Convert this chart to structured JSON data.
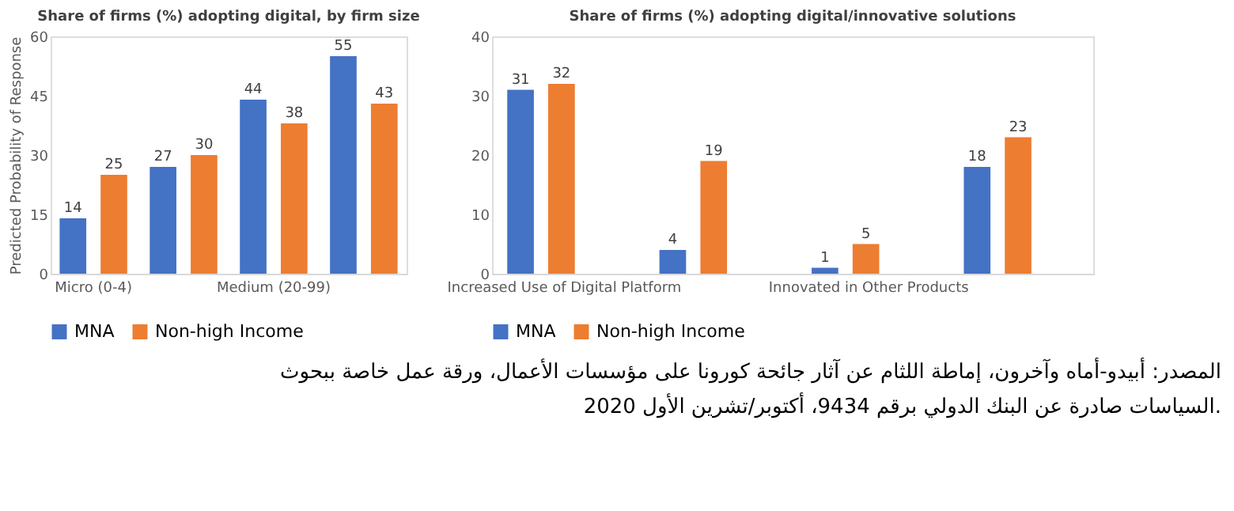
{
  "chart_data": [
    {
      "type": "bar",
      "title": "Share of firms (%) adopting digital, by firm size",
      "ylabel": "Predicted Probability of Response",
      "categories": [
        "Micro (0-4)",
        null,
        "Medium (20-99)",
        null
      ],
      "series": [
        {
          "name": "MNA",
          "color": "#4472c4",
          "values": [
            14,
            27,
            44,
            55
          ]
        },
        {
          "name": "Non-high Income",
          "color": "#ed7d31",
          "values": [
            25,
            30,
            38,
            43
          ]
        }
      ],
      "ylim": [
        0,
        60
      ],
      "yticks": [
        0,
        15,
        30,
        45,
        60
      ],
      "grid": false,
      "legend": "bottom",
      "data_labels": true,
      "annotations": [
        "المصدر: أبيدو-أماه وآخرون، إماطة اللثام عن آثار جائحة كورونا على مؤسسات الأعمال، ورقة عمل خاصة ببحوث",
        "السياسات صادرة عن البنك الدولي برقم 9434، أكتوبر/تشرين الأول 2020."
      ]
    },
    {
      "type": "bar",
      "title": "Share of firms (%) adopting digital/innovative solutions",
      "categories": [
        "Increased Use of Digital Platform",
        null,
        "Innovated in Other Products",
        null
      ],
      "series": [
        {
          "name": "MNA",
          "color": "#4472c4",
          "values": [
            31,
            4,
            1,
            18
          ]
        },
        {
          "name": "Non-high Income",
          "color": "#ed7d31",
          "values": [
            32,
            19,
            5,
            23
          ]
        }
      ],
      "ylim": [
        0,
        40
      ],
      "yticks": [
        0,
        10,
        20,
        30,
        40
      ],
      "grid": false,
      "legend": "bottom",
      "data_labels": true
    }
  ]
}
